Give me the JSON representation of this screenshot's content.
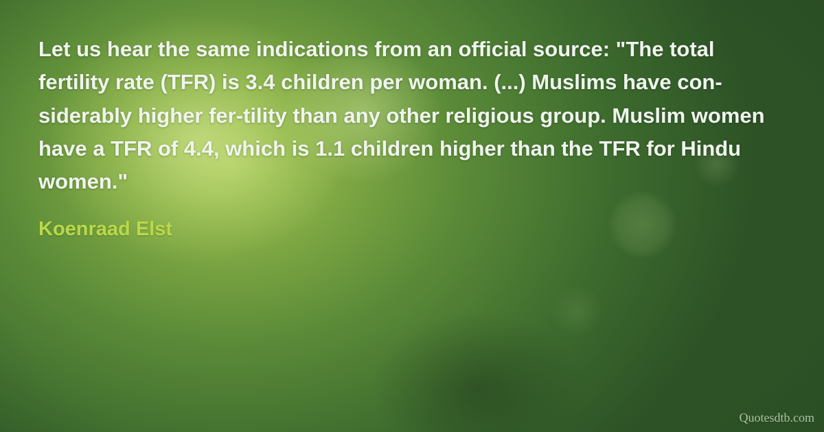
{
  "quote": {
    "text": "Let us hear the same indications from an official source: \"The total fertility rate (TFR) is 3.4 children per woman. (...) Muslims have con-siderably higher fer-tility than any other religious group. Muslim women have a TFR of 4.4, which is 1.1 children higher than the TFR for Hindu women.\"",
    "author": "Koenraad Elst",
    "watermark": "Quotesdtb.com"
  },
  "style": {
    "quote_color": "#f0f5ee",
    "quote_fontsize": 31,
    "quote_lineheight": 1.56,
    "quote_fontweight": 700,
    "author_color": "#b9d94a",
    "author_fontsize": 29,
    "watermark_color": "#d8e8c8",
    "watermark_fontsize": 18,
    "background": {
      "base_gradient": "radial-gradient(ellipse 900px 700px at 28% 38%, #a8c85e 0%, #7fa843 18%, #5a8a38 38%, #3d6b2e 62%, #2d5226 85%)",
      "highlight_1": "radial-gradient(ellipse 320px 260px at 24% 32%, rgba(220,238,150,0.55) 0%, rgba(200,225,120,0.25) 40%, transparent 70%)",
      "highlight_2": "radial-gradient(ellipse 180px 160px at 44% 26%, rgba(235,248,180,0.35) 0%, transparent 65%)",
      "vignette": "radial-gradient(ellipse 1400px 900px at 50% 50%, transparent 45%, rgba(20,40,18,0.35) 85%, rgba(15,32,14,0.55) 100%)",
      "bokeh_1": "radial-gradient(circle 70px at 78% 52%, rgba(180,210,140,0.22) 0%, rgba(180,210,140,0.12) 50%, transparent 72%)",
      "bokeh_2": "radial-gradient(circle 48px at 87% 38%, rgba(200,225,160,0.18) 0%, transparent 70%)",
      "bokeh_3": "radial-gradient(circle 55px at 70% 72%, rgba(160,195,120,0.15) 0%, transparent 70%)",
      "dark_smudge": "radial-gradient(ellipse 220px 160px at 58% 90%, rgba(25,45,22,0.4) 0%, transparent 70%)"
    }
  }
}
